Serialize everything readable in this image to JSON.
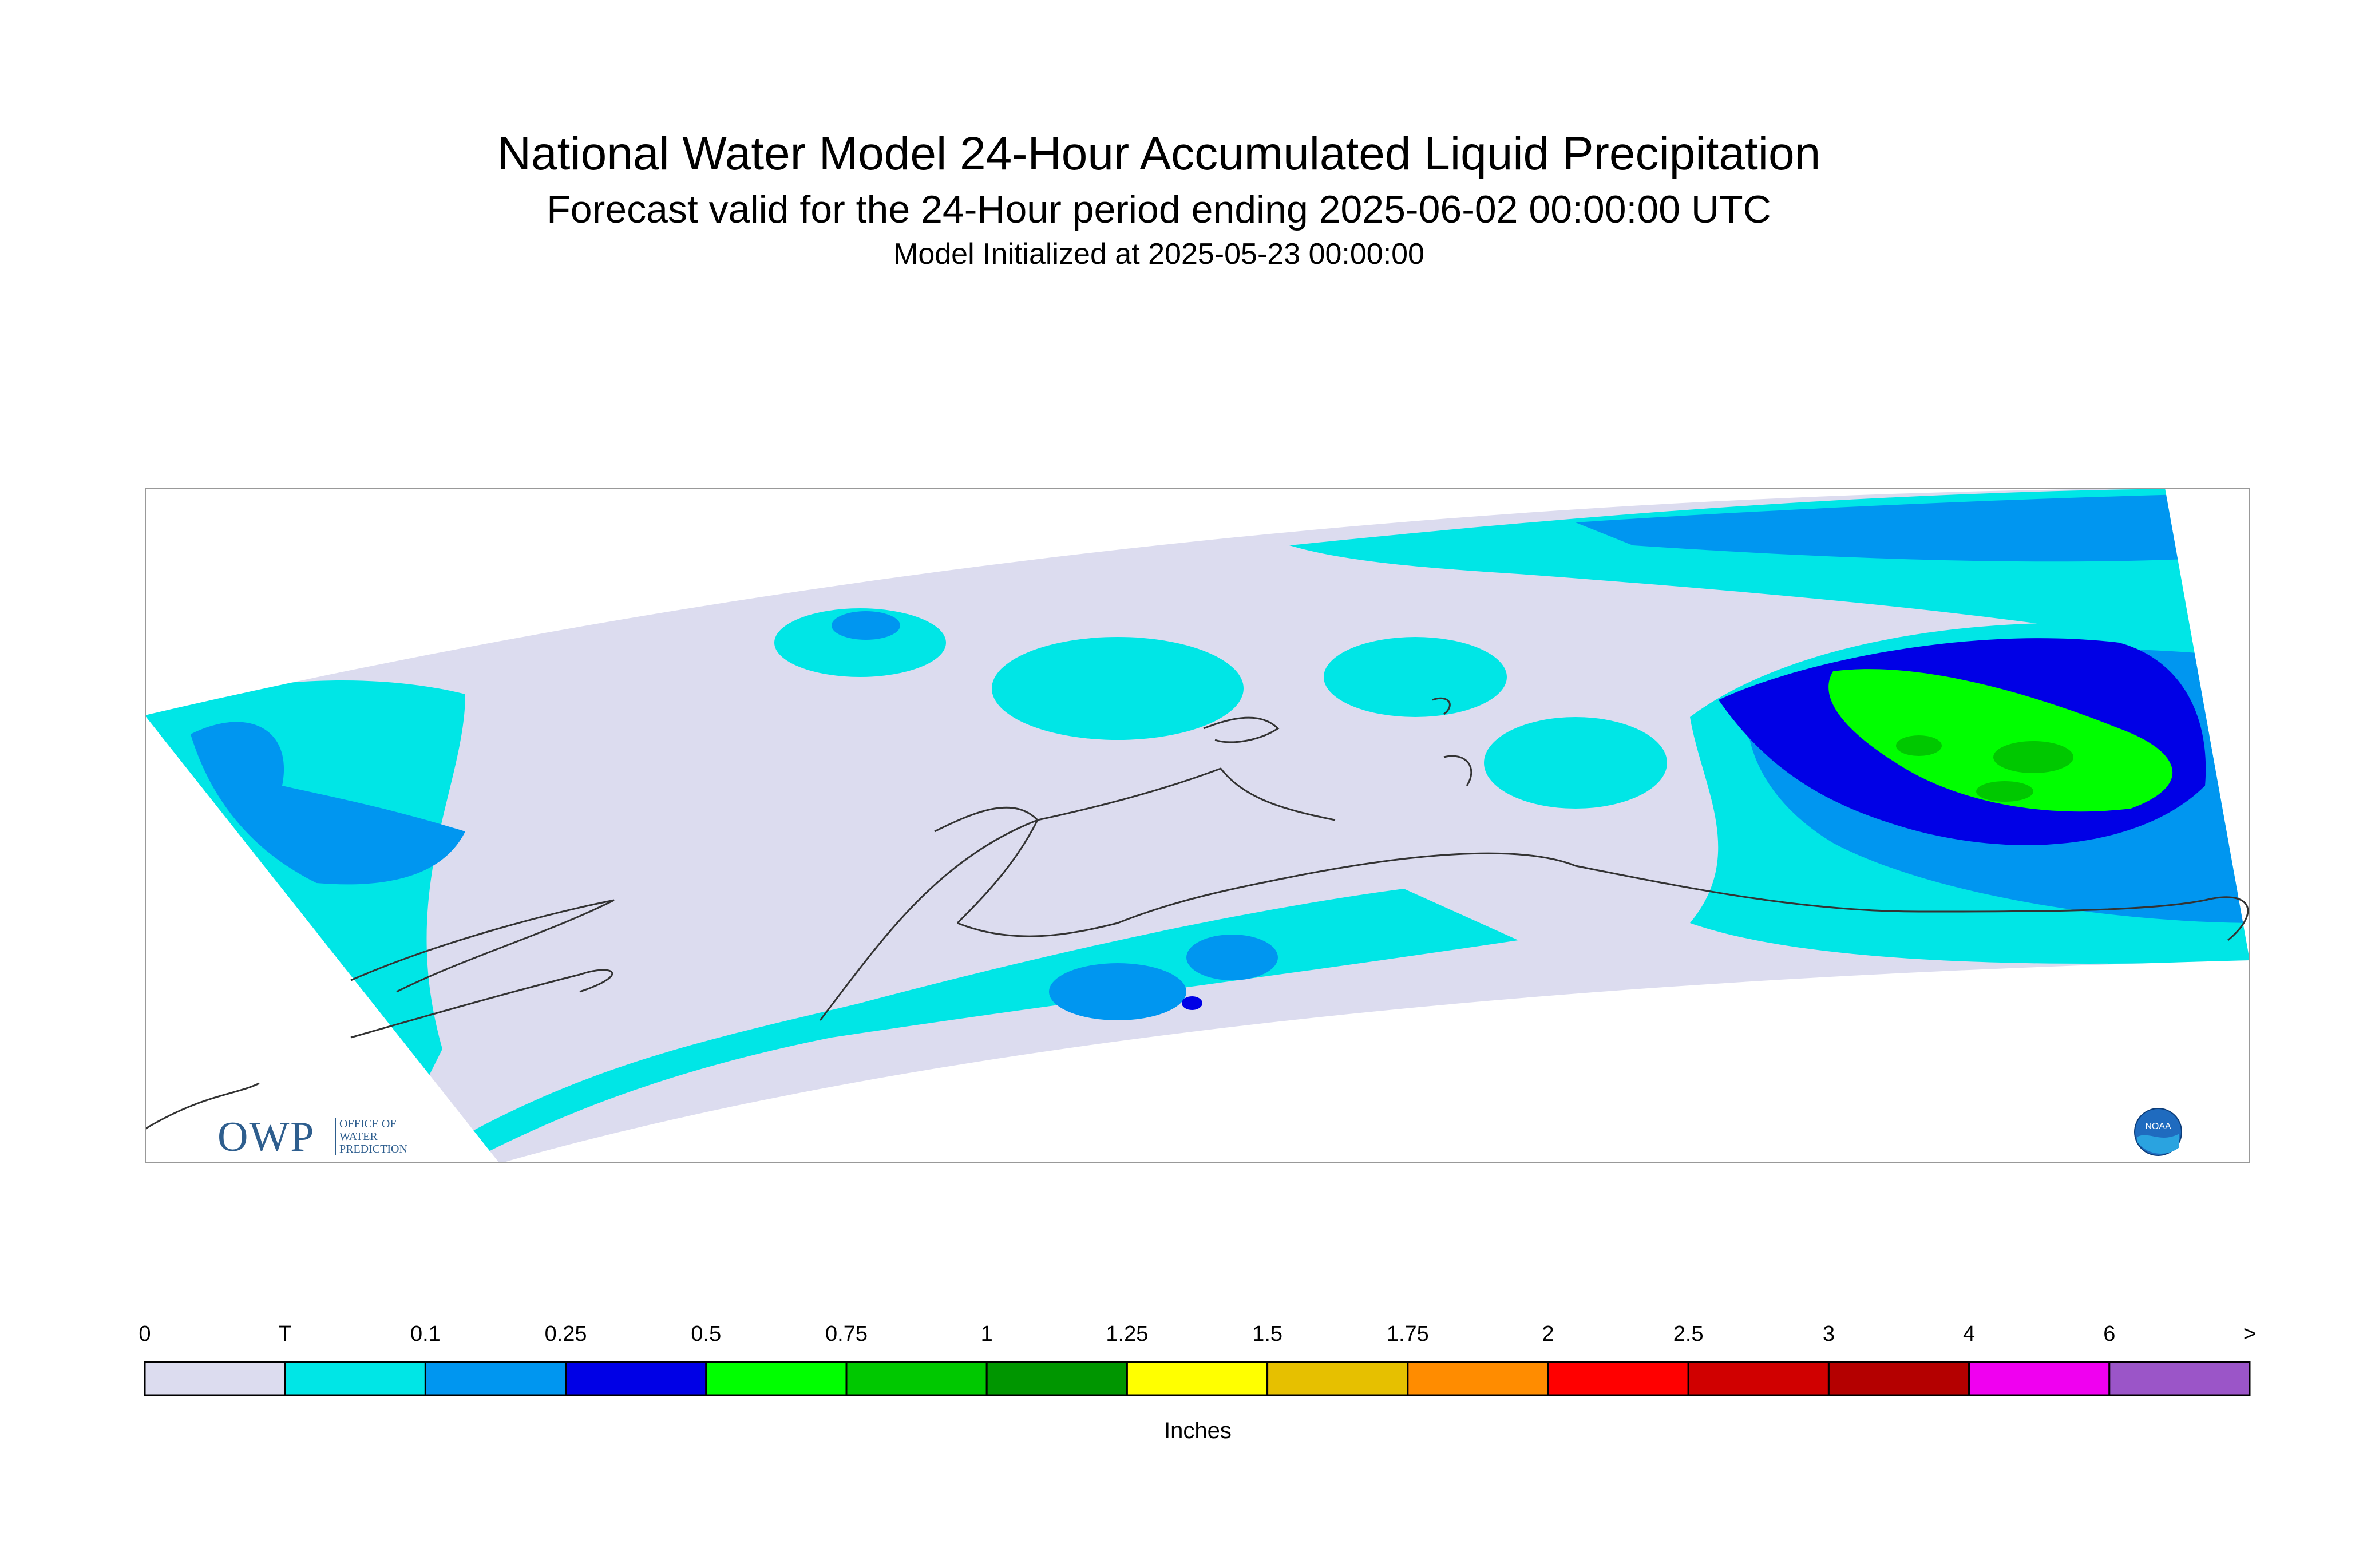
{
  "title": "National Water Model 24-Hour Accumulated Liquid Precipitation",
  "subtitle": "Forecast valid for the 24-Hour period ending 2025-06-02 00:00:00 UTC",
  "init_line": "Model Initialized at 2025-05-23 00:00:00",
  "legend": {
    "unit": "Inches",
    "ticks": [
      "0",
      "T",
      "0.1",
      "0.25",
      "0.5",
      "0.75",
      "1",
      "1.25",
      "1.5",
      "1.75",
      "2",
      "2.5",
      "3",
      "4",
      "6",
      ">"
    ],
    "colors": [
      "#dcdcef",
      "#00e6e6",
      "#0096f0",
      "#0000e6",
      "#00ff00",
      "#00c800",
      "#009600",
      "#ffff00",
      "#e6c000",
      "#ff8c00",
      "#ff0000",
      "#d00000",
      "#b40000",
      "#f000f0",
      "#9b55c8"
    ]
  },
  "logos": {
    "owp_letters": "OWP",
    "owp_lines": [
      "OFFICE OF",
      "WATER",
      "PREDICTION"
    ],
    "noaa_text": "NOAA"
  },
  "colors": {
    "no_precip": "#dcdcef",
    "trace": "#00e6e6",
    "light": "#0096f0",
    "moderate": "#0000e6",
    "heavy": "#00ff00",
    "heavier": "#00c800",
    "coastline": "#333333"
  }
}
